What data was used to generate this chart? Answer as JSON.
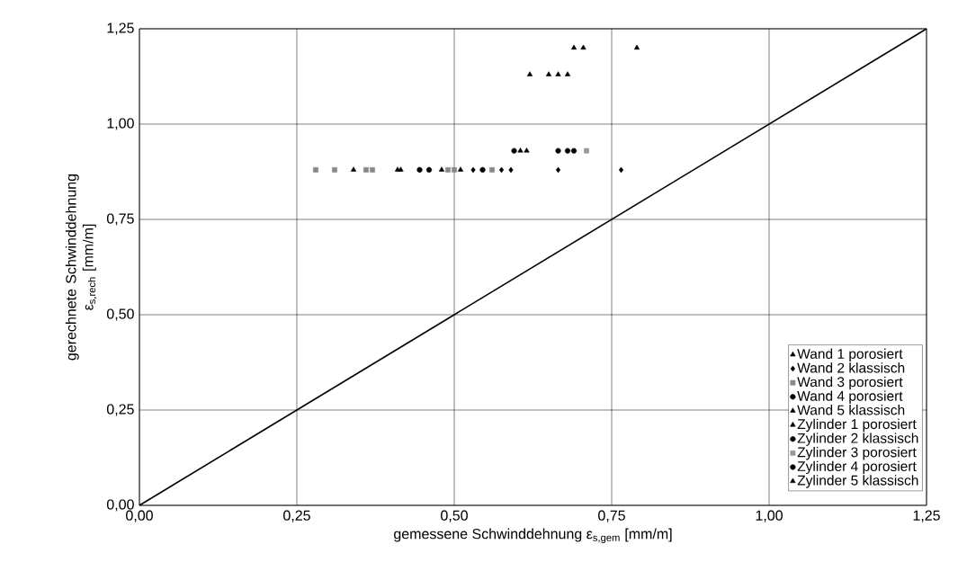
{
  "chart_data": {
    "type": "scatter",
    "xlabel": "gemessene Schwinddehnung ε$_{s,gem}$ [mm/m]",
    "ylabel": "gerechnete Schwinddehnung ε$_{s,rech}$ [mm/m]",
    "xlim": [
      0,
      1.25
    ],
    "ylim": [
      0,
      1.25
    ],
    "xticks": [
      {
        "value": 0,
        "label": "0,00"
      },
      {
        "value": 0.25,
        "label": "0,25"
      },
      {
        "value": 0.5,
        "label": "0,50"
      },
      {
        "value": 0.75,
        "label": "0,75"
      },
      {
        "value": 1,
        "label": "1,00"
      },
      {
        "value": 1.25,
        "label": "1,25"
      }
    ],
    "yticks": [
      {
        "value": 0,
        "label": "0,00"
      },
      {
        "value": 0.25,
        "label": "0,25"
      },
      {
        "value": 0.5,
        "label": "0,50"
      },
      {
        "value": 0.75,
        "label": "0,75"
      },
      {
        "value": 1,
        "label": "1,00"
      },
      {
        "value": 1.25,
        "label": "1,25"
      }
    ],
    "grid": true,
    "legend": "bottom right",
    "series": [
      {
        "name": "Wand 1 porosiert",
        "color": "#000000",
        "marker": "triangle",
        "x": [
          0.34,
          0.41,
          0.415,
          0.48,
          0.51
        ],
        "values": [
          0.88,
          0.88,
          0.88,
          0.88,
          0.88
        ]
      },
      {
        "name": "Wand 2 klassisch",
        "color": "#000000",
        "marker": "diamond",
        "x": [
          0.53,
          0.575,
          0.59,
          0.665,
          0.765
        ],
        "values": [
          0.88,
          0.88,
          0.88,
          0.88,
          0.88
        ]
      },
      {
        "name": "Wand 3 porosiert",
        "color": "#888888",
        "marker": "square",
        "x": [
          0.28,
          0.31,
          0.36,
          0.37,
          0.49,
          0.5,
          0.56
        ],
        "values": [
          0.88,
          0.88,
          0.88,
          0.88,
          0.88,
          0.88,
          0.88
        ]
      },
      {
        "name": "Wand 4 porosiert",
        "color": "#000000",
        "marker": "circle",
        "x": [
          0.445,
          0.46,
          0.545
        ],
        "values": [
          0.88,
          0.88,
          0.88
        ]
      },
      {
        "name": "Wand 5 klassisch",
        "color": "#000000",
        "marker": "triangle",
        "x": [
          0.62,
          0.65,
          0.665,
          0.68
        ],
        "values": [
          1.13,
          1.13,
          1.13,
          1.13
        ]
      },
      {
        "name": "Zylinder 1 porosiert",
        "color": "#000000",
        "marker": "triangle",
        "x": [
          0.605,
          0.615
        ],
        "values": [
          0.93,
          0.93
        ]
      },
      {
        "name": "Zylinder 2 klassisch",
        "color": "#000000",
        "marker": "circle",
        "x": [
          0.595
        ],
        "values": [
          0.93
        ]
      },
      {
        "name": "Zylinder 3 porosiert",
        "color": "#999999",
        "marker": "square",
        "x": [
          0.71
        ],
        "values": [
          0.93
        ]
      },
      {
        "name": "Zylinder 4 porosiert",
        "color": "#000000",
        "marker": "circle",
        "x": [
          0.665,
          0.68,
          0.69
        ],
        "values": [
          0.93,
          0.93,
          0.93
        ]
      },
      {
        "name": "Zylinder 5 klassisch",
        "color": "#000000",
        "marker": "triangle",
        "x": [
          0.69,
          0.705,
          0.79
        ],
        "values": [
          1.2,
          1.2,
          1.2
        ]
      },
      {
        "type": "line",
        "color": "#000000",
        "marker": "none",
        "x": [
          0,
          1.25
        ],
        "values": [
          0,
          1.25
        ]
      }
    ]
  }
}
